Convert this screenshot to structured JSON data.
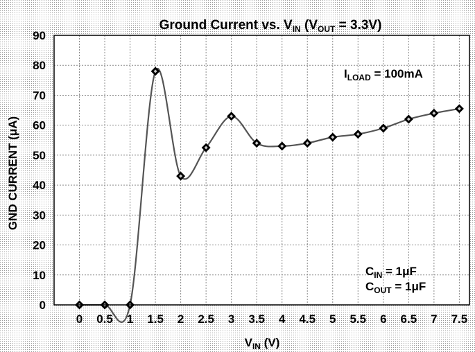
{
  "chart_data": {
    "type": "line",
    "title": {
      "main": "Ground Current vs. V",
      "main_sub": "IN",
      "paren_open": " (V",
      "paren_sub": "OUT",
      "paren_rest": " = 3.3V)"
    },
    "xlabel": {
      "main": "V",
      "sub": "IN",
      "rest": " (V)"
    },
    "ylabel": "GND CURRENT (μA)",
    "xlim": [
      -0.5,
      7.7
    ],
    "ylim": [
      0,
      90
    ],
    "x_ticks": [
      0,
      0.5,
      1,
      1.5,
      2,
      2.5,
      3,
      3.5,
      4,
      4.5,
      5,
      5.5,
      6,
      6.5,
      7,
      7.5
    ],
    "y_ticks": [
      0,
      10,
      20,
      30,
      40,
      50,
      60,
      70,
      80,
      90
    ],
    "grid": true,
    "series": [
      {
        "x": [
          0,
          0.5,
          1,
          1.5,
          2,
          2.5,
          3,
          3.5,
          4,
          4.5,
          5,
          5.5,
          6,
          6.5,
          7,
          7.5
        ],
        "values": [
          0,
          0,
          0,
          78,
          43,
          52.5,
          63,
          54,
          53,
          54,
          56,
          57,
          59,
          62,
          64,
          65.5
        ]
      }
    ],
    "annotations": {
      "iload": {
        "main": "I",
        "sub": "LOAD",
        "rest": " = 100mA"
      },
      "cin": {
        "main": "C",
        "sub": "IN",
        "rest": " = 1μF"
      },
      "cout": {
        "main": "C",
        "sub": "OUT",
        "rest": " = 1μF"
      }
    },
    "colors": {
      "line": "#555555",
      "marker": "#000000",
      "grid": "#8a8a8a",
      "plot_bg": "#ffffff",
      "outer_bg": "#cfcfcf"
    }
  }
}
